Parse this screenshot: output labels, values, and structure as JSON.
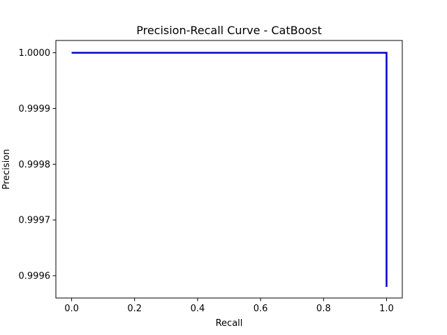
{
  "chart_data": {
    "type": "line",
    "title": "Precision-Recall Curve - CatBoost",
    "xlabel": "Recall",
    "ylabel": "Precision",
    "xlim": [
      -0.05,
      1.05
    ],
    "ylim": [
      0.99956,
      1.000022
    ],
    "x_ticks": [
      0.0,
      0.2,
      0.4,
      0.6,
      0.8,
      1.0
    ],
    "x_tick_labels": [
      "0.0",
      "0.2",
      "0.4",
      "0.6",
      "0.8",
      "1.0"
    ],
    "y_ticks": [
      0.9996,
      0.9997,
      0.9998,
      0.9999,
      1.0
    ],
    "y_tick_labels": [
      "0.9996",
      "0.9997",
      "0.9998",
      "0.9999",
      "1.0000"
    ],
    "grid": false,
    "legend": "none",
    "series": [
      {
        "color": "#0000cc",
        "x": [
          0.0,
          1.0,
          1.0
        ],
        "y": [
          1.0,
          1.0,
          0.99958
        ]
      }
    ]
  }
}
